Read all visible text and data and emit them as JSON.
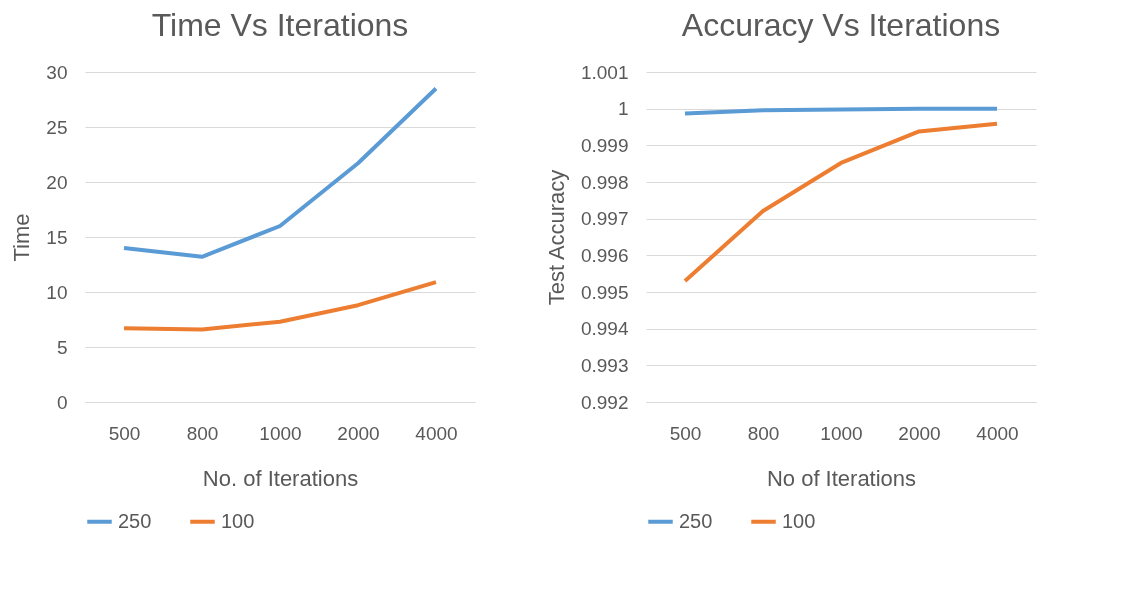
{
  "chart_data": [
    {
      "type": "line",
      "title": "Time Vs Iterations",
      "xlabel": "No. of Iterations",
      "ylabel": "Time",
      "categories": [
        "500",
        "800",
        "1000",
        "2000",
        "4000"
      ],
      "series": [
        {
          "name": "250",
          "color": "#5b9bd5",
          "values": [
            14.0,
            13.2,
            16.0,
            21.7,
            28.5
          ]
        },
        {
          "name": "100",
          "color": "#ed7d31",
          "values": [
            6.7,
            6.6,
            7.3,
            8.8,
            10.9
          ]
        }
      ],
      "ylim": [
        0,
        30
      ],
      "yticks": [
        0,
        5,
        10,
        15,
        20,
        25,
        30
      ],
      "grid": "y",
      "legend": "bottom",
      "marker": "none",
      "line_style": "solid"
    },
    {
      "type": "line",
      "title": "Accuracy Vs Iterations",
      "xlabel": "No of Iterations",
      "ylabel": "Test Accuracy",
      "categories": [
        "500",
        "800",
        "1000",
        "2000",
        "4000"
      ],
      "series": [
        {
          "name": "250",
          "color": "#5b9bd5",
          "values": [
            0.99987,
            0.99996,
            0.99998,
            1.0,
            1.0
          ]
        },
        {
          "name": "100",
          "color": "#ed7d31",
          "values": [
            0.9953,
            0.99721,
            0.99852,
            0.99938,
            0.99959
          ]
        }
      ],
      "ylim": [
        0.992,
        1.001
      ],
      "yticks": [
        0.992,
        0.993,
        0.994,
        0.995,
        0.996,
        0.997,
        0.998,
        0.999,
        1,
        1.001
      ],
      "grid": "y",
      "legend": "bottom",
      "marker": "none",
      "line_style": "solid"
    }
  ]
}
